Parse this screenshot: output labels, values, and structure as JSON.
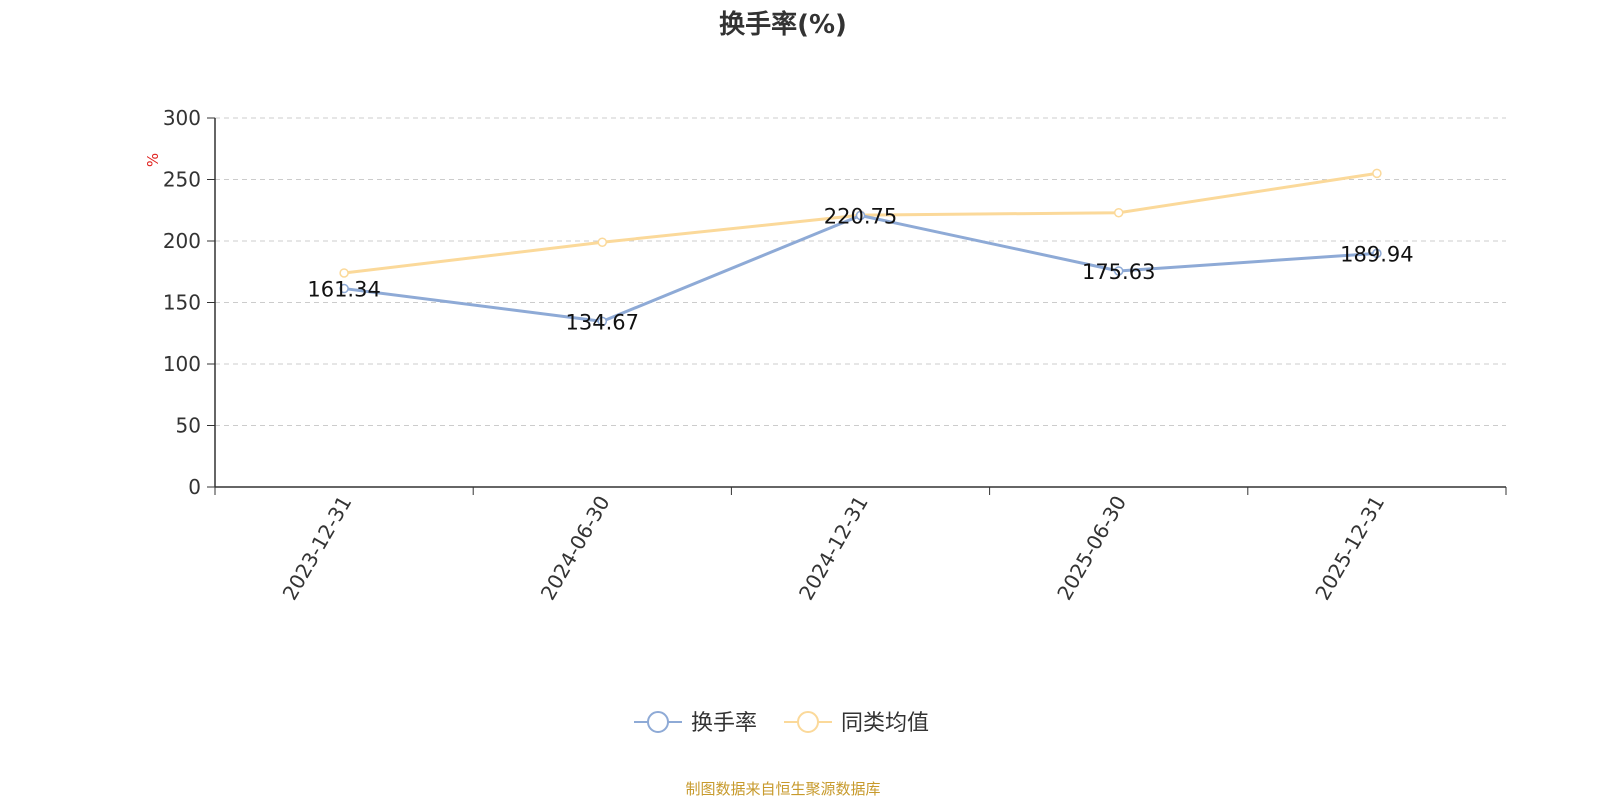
{
  "chart_data": {
    "type": "line",
    "title": "换手率(%)",
    "ylabel": "%",
    "categories": [
      "2023-12-31",
      "2024-06-30",
      "2024-12-31",
      "2025-06-30",
      "2025-12-31"
    ],
    "ylim": [
      0,
      300
    ],
    "yticks": [
      0,
      50,
      100,
      150,
      200,
      250,
      300
    ],
    "grid": true,
    "legend_position": "bottom",
    "series": [
      {
        "name": "换手率",
        "values": [
          161.34,
          134.67,
          220.75,
          175.63,
          189.94
        ],
        "data_labels": [
          "161.34",
          "134.67",
          "220.75",
          "175.63",
          "189.94"
        ],
        "color": "#8eaad6"
      },
      {
        "name": "同类均值",
        "values": [
          174,
          199,
          221,
          223,
          255
        ],
        "color": "#fbd99a"
      }
    ]
  },
  "source_note": "制图数据来自恒生聚源数据库",
  "colors": {
    "axis": "#333333",
    "grid": "#cccccc",
    "unit_label": "#e0221f",
    "source_note": "#c79a2c"
  }
}
